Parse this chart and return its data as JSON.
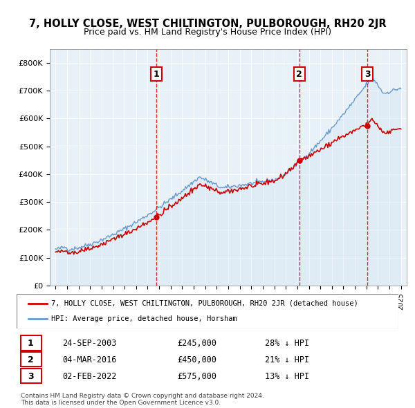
{
  "title": "7, HOLLY CLOSE, WEST CHILTINGTON, PULBOROUGH, RH20 2JR",
  "subtitle": "Price paid vs. HM Land Registry's House Price Index (HPI)",
  "legend_line1": "7, HOLLY CLOSE, WEST CHILTINGTON, PULBOROUGH, RH20 2JR (detached house)",
  "legend_line2": "HPI: Average price, detached house, Horsham",
  "footnote1": "Contains HM Land Registry data © Crown copyright and database right 2024.",
  "footnote2": "This data is licensed under the Open Government Licence v3.0.",
  "sales": [
    {
      "num": 1,
      "date": "24-SEP-2003",
      "price": 245000,
      "pct": "28%",
      "x": 2003.73
    },
    {
      "num": 2,
      "date": "04-MAR-2016",
      "price": 450000,
      "pct": "21%",
      "x": 2016.17
    },
    {
      "num": 3,
      "date": "02-FEB-2022",
      "price": 575000,
      "pct": "13%",
      "x": 2022.09
    }
  ],
  "ylim": [
    0,
    850000
  ],
  "yticks": [
    0,
    100000,
    200000,
    300000,
    400000,
    500000,
    600000,
    700000,
    800000
  ],
  "xlim": [
    1994.5,
    2025.5
  ],
  "red_color": "#cc0000",
  "blue_color": "#6699cc",
  "blue_fill": "#cce0f0",
  "bg_color": "#e8f0f8"
}
